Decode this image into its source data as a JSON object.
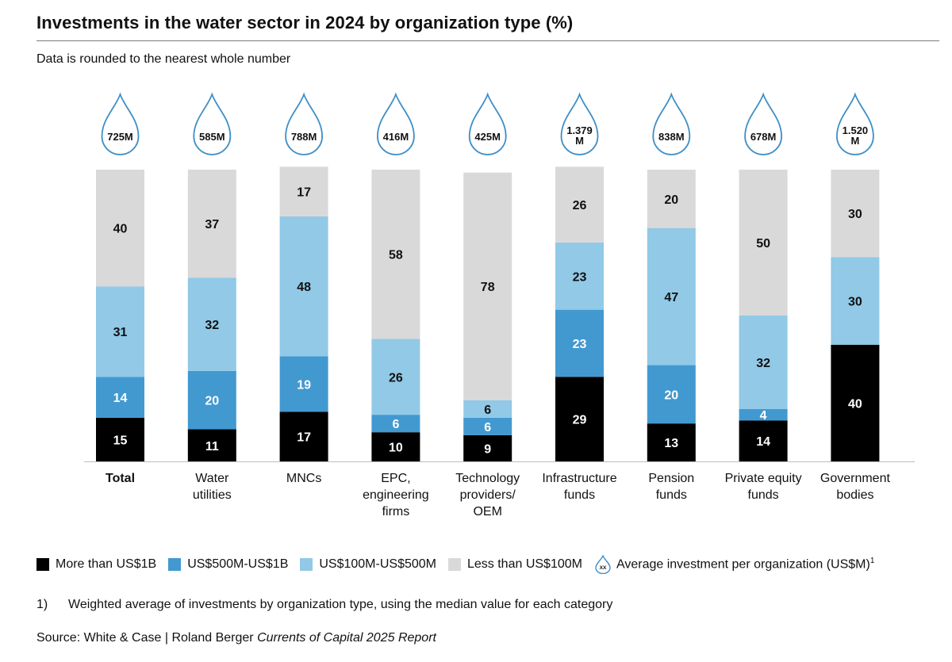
{
  "title": "Investments in the water sector in 2024 by organization type (%)",
  "subtitle": "Data is rounded to the nearest whole number",
  "colors": {
    "black": "#000000",
    "mid_blue": "#4299d0",
    "light_blue": "#91c9e7",
    "grey": "#d9d9d9",
    "drop_stroke": "#3f8fc6"
  },
  "chart_data": {
    "type": "bar",
    "stacked": true,
    "ylim": [
      0,
      100
    ],
    "categories": [
      {
        "label": [
          "Total"
        ],
        "bold": true,
        "avg_lines": [
          "725M"
        ]
      },
      {
        "label": [
          "Water",
          "utilities"
        ],
        "bold": false,
        "avg_lines": [
          "585M"
        ]
      },
      {
        "label": [
          "MNCs"
        ],
        "bold": false,
        "avg_lines": [
          "788M"
        ]
      },
      {
        "label": [
          "EPC,",
          "engineering",
          "firms"
        ],
        "bold": false,
        "avg_lines": [
          "416M"
        ]
      },
      {
        "label": [
          "Technology",
          "providers/",
          "OEM"
        ],
        "bold": false,
        "avg_lines": [
          "425M"
        ]
      },
      {
        "label": [
          "Infrastructure",
          "funds"
        ],
        "bold": false,
        "avg_lines": [
          "1.379",
          "M"
        ]
      },
      {
        "label": [
          "Pension",
          "funds"
        ],
        "bold": false,
        "avg_lines": [
          "838M"
        ]
      },
      {
        "label": [
          "Private equity",
          "funds"
        ],
        "bold": false,
        "avg_lines": [
          "678M"
        ]
      },
      {
        "label": [
          "Government",
          "bodies"
        ],
        "bold": false,
        "avg_lines": [
          "1.520",
          "M"
        ]
      }
    ],
    "series": [
      {
        "name": "More than US$1B",
        "color": "#000000",
        "label_color": "#ffffff",
        "values": [
          15,
          11,
          17,
          10,
          9,
          29,
          13,
          14,
          40
        ]
      },
      {
        "name": "US$500M-US$1B",
        "color": "#4299d0",
        "label_color": "#ffffff",
        "values": [
          14,
          20,
          19,
          6,
          6,
          23,
          20,
          4,
          null
        ]
      },
      {
        "name": "US$100M-US$500M",
        "color": "#91c9e7",
        "label_color": "#111111",
        "values": [
          31,
          32,
          48,
          26,
          6,
          23,
          47,
          32,
          30
        ]
      },
      {
        "name": "Less than US$100M",
        "color": "#d9d9d9",
        "label_color": "#111111",
        "values": [
          40,
          37,
          17,
          58,
          78,
          26,
          20,
          50,
          30
        ]
      }
    ]
  },
  "legend": {
    "items": [
      {
        "label": "More than US$1B",
        "color": "#000000"
      },
      {
        "label": "US$500M-US$1B",
        "color": "#4299d0"
      },
      {
        "label": "US$100M-US$500M",
        "color": "#91c9e7"
      },
      {
        "label": "Less than US$100M",
        "color": "#d9d9d9"
      }
    ],
    "avg_symbol_text": "XX",
    "avg_label": "Average investment per organization (US$M)",
    "avg_sup": "1"
  },
  "footnote": {
    "number": "1)",
    "text": "Weighted average of investments by organization type, using the median value for each category"
  },
  "source": {
    "prefix": "Source: White & Case | Roland Berger ",
    "italic": "Currents of Capital 2025 Report"
  }
}
